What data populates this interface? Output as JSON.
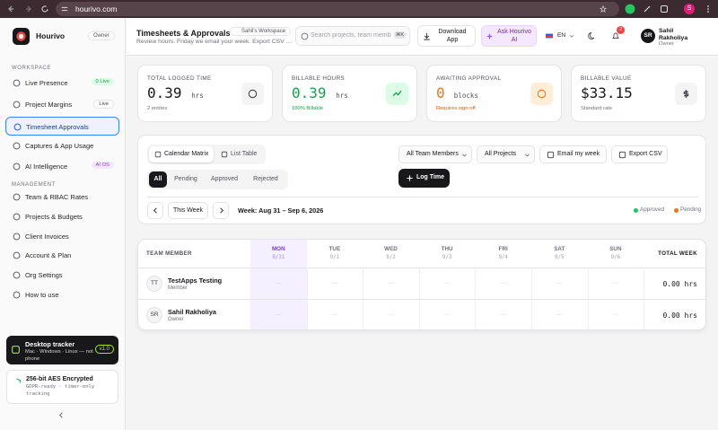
{
  "browser": {
    "url": "hourivo.com",
    "profile": "S"
  },
  "sidebar": {
    "brand": "Hourivo",
    "role": "Owner",
    "sections": [
      {
        "title": "WORKSPACE",
        "items": [
          {
            "label": "Live Presence",
            "badge": "0 Live"
          },
          {
            "label": "Project Margins",
            "badge": "Live"
          },
          {
            "label": "Timesheet Approvals"
          },
          {
            "label": "Captures & App Usage"
          },
          {
            "label": "AI Intelligence",
            "badge": "AI OS"
          }
        ]
      },
      {
        "title": "MANAGEMENT",
        "items": [
          {
            "label": "Team & RBAC Rates"
          },
          {
            "label": "Projects & Budgets"
          },
          {
            "label": "Client Invoices"
          },
          {
            "label": "Account & Plan"
          },
          {
            "label": "Org Settings"
          },
          {
            "label": "How to use"
          }
        ]
      }
    ],
    "tracker": {
      "title": "Desktop tracker",
      "subtitle": "Mac · Windows · Linux — not phone",
      "version": "v1.0"
    },
    "security": {
      "title": "256-bit AES Encrypted",
      "subtitle": "GDPR-ready · timer-only tracking"
    }
  },
  "header": {
    "title": "Timesheets & Approvals",
    "workspace": "Sahil's Workspace",
    "subtitle": "Review hours. Friday we email your week. Export CSV and",
    "search": "Search projects, team members...",
    "shortcut": "⌘K",
    "download": "Download App",
    "ask": "Ask Hourivo AI",
    "language": "EN",
    "notifications": "2",
    "user": {
      "initials": "SR",
      "name": "Sahil Rakholiya",
      "role": "Owner"
    }
  },
  "stats": [
    {
      "label": "TOTAL LOGGED TIME",
      "value": "0.39",
      "unit": "hrs",
      "note": "2 entries"
    },
    {
      "label": "BILLABLE HOURS",
      "value": "0.39",
      "unit": "hrs",
      "note": "100% Billable"
    },
    {
      "label": "AWAITING APPROVAL",
      "value": "0",
      "unit": "blocks",
      "note": "Requires sign-off"
    },
    {
      "label": "BILLABLE VALUE",
      "value": "$33.15",
      "note": "Standard rate"
    }
  ],
  "toolbar": {
    "views": [
      "Calendar Matrix",
      "List Table"
    ],
    "filters": [
      "All",
      "Pending",
      "Approved",
      "Rejected"
    ],
    "selects": [
      "All Team Members",
      "All Projects"
    ],
    "email": "Email my week",
    "export": "Export CSV",
    "log": "Log Time",
    "this_week": "This Week",
    "week": "Week: Aug 31 – Sep 6, 2026",
    "legend": [
      "Approved",
      "Pending"
    ]
  },
  "table": {
    "member_header": "TEAM MEMBER",
    "total_header": "TOTAL WEEK",
    "days": [
      {
        "name": "MON",
        "date": "8/31"
      },
      {
        "name": "TUE",
        "date": "9/1"
      },
      {
        "name": "WED",
        "date": "9/2"
      },
      {
        "name": "THU",
        "date": "9/3"
      },
      {
        "name": "FRI",
        "date": "9/4"
      },
      {
        "name": "SAT",
        "date": "9/5"
      },
      {
        "name": "SUN",
        "date": "9/6"
      }
    ],
    "rows": [
      {
        "initials": "TT",
        "name": "TestApps Testing",
        "role": "Member",
        "cells": [
          "—",
          "—",
          "—",
          "—",
          "—",
          "—",
          "—"
        ],
        "total": "0.00 hrs"
      },
      {
        "initials": "SR",
        "name": "Sahil Rakholiya",
        "role": "Owner",
        "cells": [
          "—",
          "—",
          "—",
          "—",
          "—",
          "—",
          "—"
        ],
        "total": "0.00 hrs"
      }
    ]
  }
}
